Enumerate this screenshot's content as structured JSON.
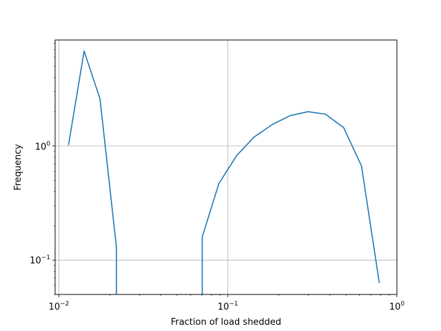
{
  "chart_data": {
    "type": "line",
    "title": "",
    "xlabel": "Fraction of load shedded",
    "ylabel": "Frequency",
    "xscale": "log",
    "yscale": "log",
    "xlim": [
      0.0095,
      1.0
    ],
    "ylim": [
      0.05,
      8.5
    ],
    "grid": true,
    "x_ticks": [
      {
        "value": 0.01,
        "base": "10",
        "exp": "−2"
      },
      {
        "value": 0.1,
        "base": "10",
        "exp": "−1"
      },
      {
        "value": 1,
        "base": "10",
        "exp": "0"
      }
    ],
    "y_ticks": [
      {
        "value": 0.1,
        "base": "10",
        "exp": "−1"
      },
      {
        "value": 1,
        "base": "10",
        "exp": "0"
      }
    ],
    "line_color": "#1f77b4",
    "series": [
      {
        "segments": [
          [
            {
              "x": 0.0114,
              "y": 1.02
            },
            {
              "x": 0.0141,
              "y": 6.8
            },
            {
              "x": 0.0175,
              "y": 2.6
            },
            {
              "x": 0.0219,
              "y": 0.13
            },
            {
              "x": 0.0219,
              "y": 0.05
            }
          ],
          [
            {
              "x": 0.0705,
              "y": 0.05
            },
            {
              "x": 0.0705,
              "y": 0.16
            },
            {
              "x": 0.0885,
              "y": 0.47
            },
            {
              "x": 0.113,
              "y": 0.83
            },
            {
              "x": 0.143,
              "y": 1.2
            },
            {
              "x": 0.184,
              "y": 1.55
            },
            {
              "x": 0.234,
              "y": 1.85
            },
            {
              "x": 0.298,
              "y": 2.0
            },
            {
              "x": 0.378,
              "y": 1.9
            },
            {
              "x": 0.484,
              "y": 1.45
            },
            {
              "x": 0.617,
              "y": 0.67
            },
            {
              "x": 0.787,
              "y": 0.063
            }
          ]
        ]
      }
    ]
  }
}
